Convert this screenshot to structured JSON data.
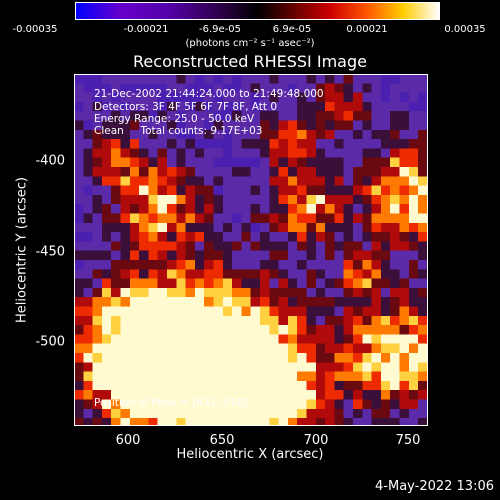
{
  "colorbar": {
    "ticks": [
      "-0.00035",
      "-0.00021",
      "-6.9e-05",
      "6.9e-05",
      "0.00021",
      "0.00035"
    ],
    "unit": "(photons cm⁻² s⁻¹ asec⁻²)"
  },
  "title": "Reconstructed RHESSI Image",
  "info": {
    "line1": "21-Dec-2002 21:44:24.000 to 21:49:48.000",
    "line2": "Detectors: 3F 4F 5F 6F 7F 8F, Att 0",
    "line3": "Energy Range: 25.0 - 50.0 keV",
    "line4": "Clean     Total counts: 9.17E+03",
    "peak": "Position of Peak = [631,-510]"
  },
  "x_ticks": [
    "600",
    "650",
    "700",
    "750"
  ],
  "y_ticks": [
    "-400",
    "-450",
    "-500"
  ],
  "xlabel": "Heliocentric X (arcsec)",
  "ylabel": "Heliocentric Y (arcsec)",
  "timestamp": "4-May-2022 13:06",
  "chart_data": {
    "type": "heatmap",
    "title": "Reconstructed RHESSI Image",
    "xlabel": "Heliocentric X (arcsec)",
    "ylabel": "Heliocentric Y (arcsec)",
    "xlim": [
      567,
      760
    ],
    "ylim": [
      -545,
      -357
    ],
    "x_ticks": [
      600,
      650,
      700,
      750
    ],
    "y_ticks": [
      -400,
      -450,
      -500
    ],
    "colorbar_range": [
      -0.00035,
      0.00035
    ],
    "colorbar_ticks": [
      -0.00035,
      -0.00021,
      -6.9e-05,
      6.9e-05,
      0.00021,
      0.00035
    ],
    "peak_position": [
      631,
      -510
    ],
    "colormap": [
      "#0000ff",
      "#6600cc",
      "#330055",
      "#000000",
      "#cc0000",
      "#ff5500",
      "#ffcc00",
      "#ffffff"
    ]
  }
}
